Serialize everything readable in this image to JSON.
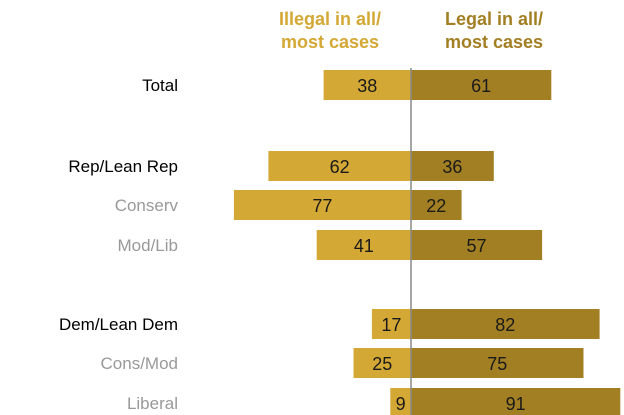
{
  "headers": {
    "illegal": [
      "Illegal in all/",
      "most cases"
    ],
    "legal": [
      "Legal in all/",
      "most cases"
    ]
  },
  "colors": {
    "illegal_bar": "#d4a835",
    "legal_bar": "#a37f24",
    "header_illegal": "#d4a835",
    "header_legal": "#a37f24",
    "label_primary": "#000000",
    "label_secondary": "#999999",
    "center_line": "#888888"
  },
  "chart_data": {
    "type": "bar",
    "orientation": "horizontal-diverging",
    "categories": [
      "Total",
      "Rep/Lean Rep",
      "Conserv",
      "Mod/Lib",
      "Dem/Lean Dem",
      "Cons/Mod",
      "Liberal"
    ],
    "category_level": [
      "primary",
      "primary",
      "secondary",
      "secondary",
      "primary",
      "secondary",
      "secondary"
    ],
    "series": [
      {
        "name": "Illegal in all/ most cases",
        "values": [
          38,
          62,
          77,
          41,
          17,
          25,
          9
        ],
        "direction": "left"
      },
      {
        "name": "Legal in all/ most cases",
        "values": [
          61,
          36,
          22,
          57,
          82,
          75,
          91
        ],
        "direction": "right"
      }
    ],
    "data_labels": true,
    "gridlines": false,
    "legend": "column headers above bars"
  }
}
